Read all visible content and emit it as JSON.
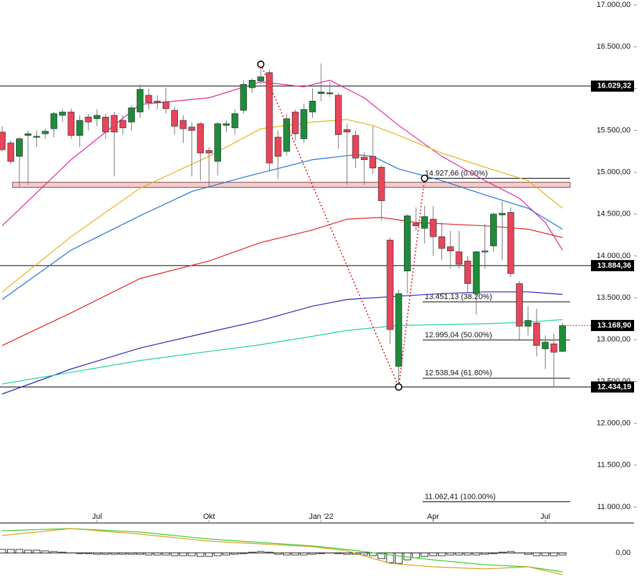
{
  "chart_data": [
    {
      "type": "candlestick",
      "xlim": [
        -0.25,
        68.3
      ],
      "xticks": [
        {
          "value": 11,
          "label": "Jul"
        },
        {
          "value": 24,
          "label": "Okt"
        },
        {
          "value": 37,
          "label": "Jan '22"
        },
        {
          "value": 50,
          "label": "Apr"
        },
        {
          "value": 63,
          "label": "Jul"
        }
      ],
      "ylim": [
        11000,
        17000
      ],
      "yticks": [
        {
          "value": 17000,
          "label": "17.000,00"
        },
        {
          "value": 16500,
          "label": "16.500,00"
        },
        {
          "value": 16000,
          "label": "16.000,00"
        },
        {
          "value": 15500,
          "label": "15.500,00"
        },
        {
          "value": 15000,
          "label": "15.000,00"
        },
        {
          "value": 14500,
          "label": "14.500,00"
        },
        {
          "value": 14000,
          "label": "14.000,00"
        },
        {
          "value": 13500,
          "label": "13.500,00"
        },
        {
          "value": 13000,
          "label": "13.000,00"
        },
        {
          "value": 12500,
          "label": "12.500,00"
        },
        {
          "value": 12000,
          "label": "12.000,00"
        },
        {
          "value": 11500,
          "label": "11.500,00"
        },
        {
          "value": 11000,
          "label": "11.000,00"
        }
      ],
      "up_color": "#1e8c3a",
      "down_color": "#e8455a",
      "open": [
        15480,
        15350,
        15190,
        15440,
        15420,
        15460,
        15520,
        15680,
        15720,
        15440,
        15660,
        15640,
        15660,
        15680,
        15620,
        15600,
        15720,
        15920,
        15850,
        15840,
        15740,
        15620,
        15540,
        15580,
        15260,
        15130,
        15560,
        15530,
        15740,
        16010,
        16090,
        16190,
        15420,
        15250,
        15720,
        15400,
        15720,
        15940,
        15950,
        15920,
        15510,
        15440,
        15180,
        15190,
        15060,
        14190,
        12680,
        13820,
        14390,
        14330,
        14440,
        14230,
        14110,
        14050,
        13940,
        13550,
        14050,
        14120,
        14490,
        14520,
        13670,
        13160,
        13200,
        12890,
        12950,
        12860
      ],
      "high": [
        15550,
        15380,
        15420,
        15500,
        15500,
        15520,
        15720,
        15760,
        15760,
        15680,
        15700,
        15750,
        15700,
        15720,
        15680,
        15800,
        16050,
        16000,
        15920,
        16010,
        15780,
        15680,
        15600,
        15600,
        15300,
        15600,
        15620,
        15750,
        16100,
        16120,
        16300,
        16230,
        15500,
        15700,
        15750,
        15820,
        16000,
        16300,
        16080,
        15950,
        15580,
        15500,
        15240,
        15550,
        15080,
        14220,
        13600,
        14500,
        14580,
        14600,
        14600,
        14400,
        14300,
        14300,
        14000,
        14060,
        14380,
        14520,
        14650,
        14580,
        13700,
        13400,
        13370,
        13050,
        13070,
        13200
      ],
      "low": [
        15250,
        15100,
        14820,
        14850,
        15300,
        15400,
        15420,
        15600,
        15400,
        15300,
        15500,
        15550,
        15400,
        14950,
        15450,
        15500,
        15650,
        15750,
        15750,
        15700,
        15450,
        15350,
        14950,
        14900,
        14830,
        14960,
        15480,
        15450,
        15700,
        15950,
        16050,
        15020,
        14920,
        15200,
        15380,
        15350,
        15650,
        15850,
        15900,
        15280,
        14850,
        15050,
        14850,
        14980,
        14420,
        12950,
        12440,
        13550,
        14300,
        14150,
        14000,
        13950,
        13850,
        13850,
        13550,
        13300,
        13850,
        14050,
        13950,
        13750,
        13000,
        13050,
        12800,
        12650,
        12430,
        12850
      ],
      "close": [
        15270,
        15130,
        15400,
        15460,
        15430,
        15490,
        15700,
        15720,
        15440,
        15620,
        15600,
        15680,
        15480,
        15480,
        15530,
        15770,
        15990,
        15830,
        15830,
        15760,
        15550,
        15520,
        15500,
        15230,
        15230,
        15580,
        15580,
        15700,
        16050,
        16100,
        16140,
        15110,
        15190,
        15640,
        15460,
        15750,
        15850,
        15960,
        15950,
        15450,
        15480,
        15170,
        15150,
        15050,
        14660,
        13120,
        13550,
        14480,
        14360,
        14470,
        14230,
        14090,
        14060,
        13900,
        13670,
        14050,
        14060,
        14500,
        14510,
        13790,
        13160,
        13230,
        12930,
        12970,
        12850,
        13168.9
      ],
      "series": [
        {
          "color": "#e0259a",
          "x": [
            0,
            8,
            16,
            24,
            30,
            35,
            38,
            42,
            46,
            51,
            56,
            60,
            63,
            65
          ],
          "values": [
            14360,
            15150,
            15810,
            15890,
            16080,
            16020,
            16100,
            15890,
            15560,
            15190,
            14900,
            14690,
            14400,
            14070
          ]
        },
        {
          "color": "#e2b21c",
          "x": [
            0,
            8,
            16,
            24,
            30,
            36,
            40,
            43,
            46,
            51,
            56,
            61,
            65
          ],
          "values": [
            13570,
            14230,
            14810,
            15190,
            15520,
            15600,
            15630,
            15560,
            15440,
            15230,
            15060,
            14900,
            14570
          ]
        },
        {
          "color": "#1c6fd6",
          "x": [
            0,
            8,
            16,
            22,
            28,
            36,
            41,
            43,
            46,
            51,
            56,
            61,
            65
          ],
          "values": [
            13480,
            14070,
            14480,
            14770,
            14940,
            15150,
            15210,
            15190,
            15040,
            14900,
            14730,
            14570,
            14320
          ]
        },
        {
          "color": "#e02020",
          "x": [
            0,
            8,
            16,
            24,
            30,
            36,
            40,
            44,
            48,
            56,
            61,
            65
          ],
          "values": [
            12930,
            13320,
            13730,
            13940,
            14160,
            14310,
            14440,
            14460,
            14400,
            14360,
            14320,
            14220
          ]
        },
        {
          "color": "#2424b8",
          "x": [
            0,
            8,
            16,
            24,
            30,
            36,
            40,
            46,
            51,
            56,
            61,
            65
          ],
          "values": [
            12350,
            12650,
            12900,
            13090,
            13230,
            13400,
            13480,
            13520,
            13550,
            13570,
            13570,
            13540
          ]
        },
        {
          "color": "#19d0a0",
          "x": [
            0,
            8,
            16,
            24,
            30,
            36,
            40,
            46,
            51,
            56,
            61,
            65
          ],
          "values": [
            12470,
            12610,
            12750,
            12860,
            12940,
            13040,
            13110,
            13170,
            13180,
            13190,
            13210,
            13240
          ]
        }
      ],
      "levels": [
        {
          "value": 16029.32,
          "label": "16.029,32"
        },
        {
          "value": 13884.36,
          "label": "13.884,36"
        },
        {
          "value": 12434.19,
          "label": "12.434,19"
        }
      ],
      "price_label": {
        "value": 13168.9,
        "label": "13.168,90"
      },
      "zone": [
        14820,
        14880
      ],
      "fib_levels": [
        {
          "value": 14927.66,
          "label": "14.927,66 (0.00%)"
        },
        {
          "value": 13451.13,
          "label": "13.451,13 (38.20%)"
        },
        {
          "value": 12995.04,
          "label": "12.995,04 (50.00%)"
        },
        {
          "value": 12538.94,
          "label": "12.538,94 (61.80%)"
        },
        {
          "value": 11062.41,
          "label": "11.062,41 (100.00%)"
        }
      ],
      "zigzag": {
        "x": [
          30,
          46,
          49
        ],
        "values": [
          16290,
          12434.19,
          14927.66
        ]
      }
    },
    {
      "type": "macd",
      "ylim": [
        -40,
        40
      ],
      "yticks": [
        {
          "value": 0,
          "label": "0,00"
        }
      ],
      "histogram": [
        5,
        5,
        5,
        4,
        4,
        3,
        2,
        1,
        0,
        -1,
        -1,
        -2,
        -2,
        -2,
        -2,
        -2,
        -2,
        -3,
        -3,
        -3,
        -4,
        -4,
        -4,
        -5,
        -5,
        -4,
        -3,
        -2,
        -1,
        1,
        2,
        1,
        -2,
        -3,
        -3,
        -3,
        -2,
        -1,
        0,
        -1,
        -2,
        -2,
        -3,
        -4,
        -8,
        -14,
        -15,
        -10,
        -7,
        -5,
        -4,
        -4,
        -3,
        -3,
        -3,
        -3,
        -2,
        -1,
        1,
        2,
        0,
        -2,
        -4,
        -4,
        -4,
        -3
      ],
      "series": [
        {
          "color": "#3ccc2a",
          "x": [
            0,
            8,
            16,
            24,
            30,
            36,
            40,
            45,
            50,
            56,
            61,
            65
          ],
          "values": [
            32,
            35,
            30,
            20,
            15,
            10,
            5,
            -3,
            -10,
            -17,
            -20,
            -27
          ]
        },
        {
          "color": "#d9a21a",
          "x": [
            0,
            8,
            16,
            24,
            30,
            36,
            40,
            45,
            50,
            56,
            61,
            65
          ],
          "values": [
            25,
            35,
            27,
            17,
            13,
            9,
            3,
            -15,
            -20,
            -23,
            -20,
            -31
          ]
        }
      ]
    }
  ]
}
